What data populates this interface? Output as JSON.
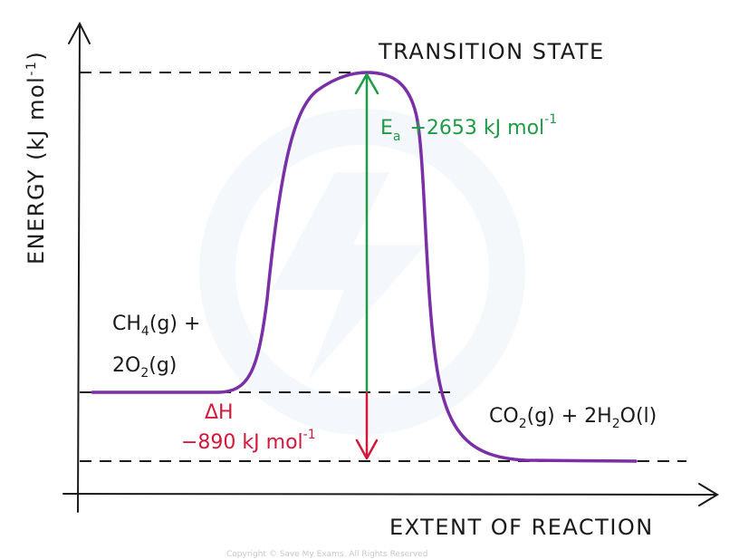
{
  "diagram": {
    "y_axis_label": {
      "main": "ENERGY (kJ mol",
      "sup": "-1",
      "close": ")"
    },
    "x_axis_label": "EXTENT OF REACTION",
    "transition_state": "TRANSITION STATE",
    "reactants": {
      "line1": {
        "a": "CH",
        "sub": "4",
        "b": "(g) +"
      },
      "line2": {
        "a": "2O",
        "sub": "2",
        "b": "(g)"
      }
    },
    "products": {
      "a": "CO",
      "sub1": "2",
      "b": "(g) + 2H",
      "sub2": "2",
      "c": "O(l)"
    },
    "activation_energy": {
      "symbol": "E",
      "sub": "a",
      "value": "+2653 kJ mol",
      "sup": "-1"
    },
    "enthalpy_change": {
      "symbol": "ΔH",
      "value": "−890 kJ mol",
      "sup": "-1"
    },
    "watermark": "Copyright © Save My Exams. All Rights Reserved",
    "colors": {
      "curve": "#7a2fa6",
      "ea_arrow": "#1f9a46",
      "dh_arrow": "#d2183a",
      "axes": "#1a1a1a"
    }
  }
}
